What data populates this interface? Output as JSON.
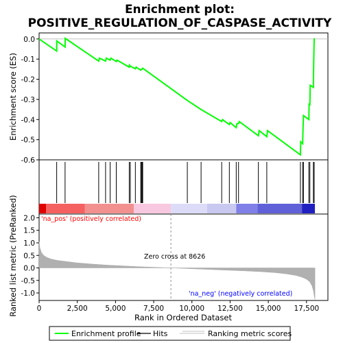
{
  "chart_data": {
    "type": "line",
    "title_line1": "Enrichment plot:",
    "title_line2": "POSITIVE_REGULATION_OF_CASPASE_ACTIVITY",
    "es_panel": {
      "ylabel": "Enrichment score (ES)",
      "ylim": [
        -0.6,
        0.03
      ],
      "yticks": [
        "0.0",
        "-0.1",
        "-0.2",
        "-0.3",
        "-0.4",
        "-0.5",
        "-0.6"
      ],
      "ytick_values": [
        0.0,
        -0.1,
        -0.2,
        -0.3,
        -0.4,
        -0.5,
        -0.6
      ],
      "line_color": "#00ff00",
      "points": [
        [
          0,
          0.0
        ],
        [
          1150,
          -0.06
        ],
        [
          1160,
          -0.01
        ],
        [
          1700,
          -0.04
        ],
        [
          1710,
          0.003
        ],
        [
          3900,
          -0.11
        ],
        [
          3950,
          -0.095
        ],
        [
          4350,
          -0.11
        ],
        [
          4400,
          -0.095
        ],
        [
          4650,
          -0.105
        ],
        [
          4700,
          -0.095
        ],
        [
          5050,
          -0.112
        ],
        [
          5100,
          -0.105
        ],
        [
          5900,
          -0.14
        ],
        [
          5920,
          -0.13
        ],
        [
          5970,
          -0.135
        ],
        [
          6300,
          -0.148
        ],
        [
          6350,
          -0.14
        ],
        [
          6650,
          -0.155
        ],
        [
          6700,
          -0.15
        ],
        [
          6740,
          -0.15
        ],
        [
          6780,
          -0.145
        ],
        [
          9700,
          -0.305
        ],
        [
          10600,
          -0.35
        ],
        [
          11950,
          -0.41
        ],
        [
          12000,
          -0.4
        ],
        [
          12450,
          -0.425
        ],
        [
          12500,
          -0.415
        ],
        [
          12900,
          -0.44
        ],
        [
          12950,
          -0.42
        ],
        [
          13050,
          -0.42
        ],
        [
          13100,
          -0.41
        ],
        [
          14350,
          -0.48
        ],
        [
          14400,
          -0.455
        ],
        [
          14900,
          -0.485
        ],
        [
          14950,
          -0.455
        ],
        [
          17100,
          -0.575
        ],
        [
          17120,
          -0.51
        ],
        [
          17250,
          -0.52
        ],
        [
          17270,
          -0.45
        ],
        [
          17300,
          -0.38
        ],
        [
          17650,
          -0.4
        ],
        [
          17670,
          -0.32
        ],
        [
          17720,
          -0.33
        ],
        [
          17740,
          -0.23
        ],
        [
          17950,
          -0.24
        ],
        [
          17970,
          -0.12
        ],
        [
          18000,
          0.0
        ],
        [
          18050,
          0.0
        ]
      ]
    },
    "hits_panel": {
      "hit_positions": [
        1150,
        1700,
        3900,
        4350,
        4650,
        5050,
        5900,
        5970,
        6300,
        6650,
        6700,
        6740,
        6780,
        9700,
        10600,
        11950,
        12450,
        12900,
        13050,
        14350,
        14900,
        17100,
        17250,
        17300,
        17650,
        17720,
        17950,
        18000
      ]
    },
    "metric_panel": {
      "ylabel": "Ranked list metric (PreRanked)",
      "ylim": [
        -1.3,
        2.15
      ],
      "yticks": [
        "2.0",
        "1.5",
        "1.0",
        "0.5",
        "0.0",
        "-0.5",
        "-1.0"
      ],
      "ytick_values": [
        2.0,
        1.5,
        1.0,
        0.5,
        0.0,
        -0.5,
        -1.0
      ],
      "curve": [
        [
          0,
          1.05
        ],
        [
          50,
          0.8
        ],
        [
          150,
          0.62
        ],
        [
          300,
          0.5
        ],
        [
          500,
          0.42
        ],
        [
          800,
          0.35
        ],
        [
          1200,
          0.3
        ],
        [
          1700,
          0.26
        ],
        [
          2500,
          0.2
        ],
        [
          3500,
          0.15
        ],
        [
          4500,
          0.11
        ],
        [
          5500,
          0.08
        ],
        [
          6500,
          0.05
        ],
        [
          7500,
          0.025
        ],
        [
          8626,
          0.0
        ],
        [
          9500,
          -0.02
        ],
        [
          10500,
          -0.045
        ],
        [
          11500,
          -0.07
        ],
        [
          12500,
          -0.095
        ],
        [
          13500,
          -0.12
        ],
        [
          14500,
          -0.15
        ],
        [
          15500,
          -0.19
        ],
        [
          16200,
          -0.24
        ],
        [
          16800,
          -0.3
        ],
        [
          17200,
          -0.37
        ],
        [
          17500,
          -0.45
        ],
        [
          17700,
          -0.55
        ],
        [
          17850,
          -0.7
        ],
        [
          17950,
          -0.9
        ],
        [
          18010,
          -1.15
        ],
        [
          18050,
          -1.25
        ]
      ],
      "pos_label": "'na_pos' (positively correlated)",
      "neg_label": "'na_neg' (negatively correlated)",
      "zero_cross_label": "Zero cross at 8626",
      "zero_cross": 8626
    },
    "xlabel": "Rank in Ordered Dataset",
    "xlim": [
      0,
      18900
    ],
    "xticks": [
      "0",
      "2,500",
      "5,000",
      "7,500",
      "10,000",
      "12,500",
      "15,000",
      "17,500"
    ],
    "xtick_values": [
      0,
      2500,
      5000,
      7500,
      10000,
      12500,
      15000,
      17500
    ],
    "legend": {
      "items": [
        {
          "label": "Enrichment profile",
          "color": "#00ff00"
        },
        {
          "label": "Hits",
          "color": "#000000"
        },
        {
          "label": "Ranking metric scores",
          "color": "#c0c0c0"
        }
      ]
    },
    "colors": {
      "pos_text": "#ff0000",
      "neg_text": "#0000ff",
      "metric_fill": "#b0b0b0"
    }
  }
}
